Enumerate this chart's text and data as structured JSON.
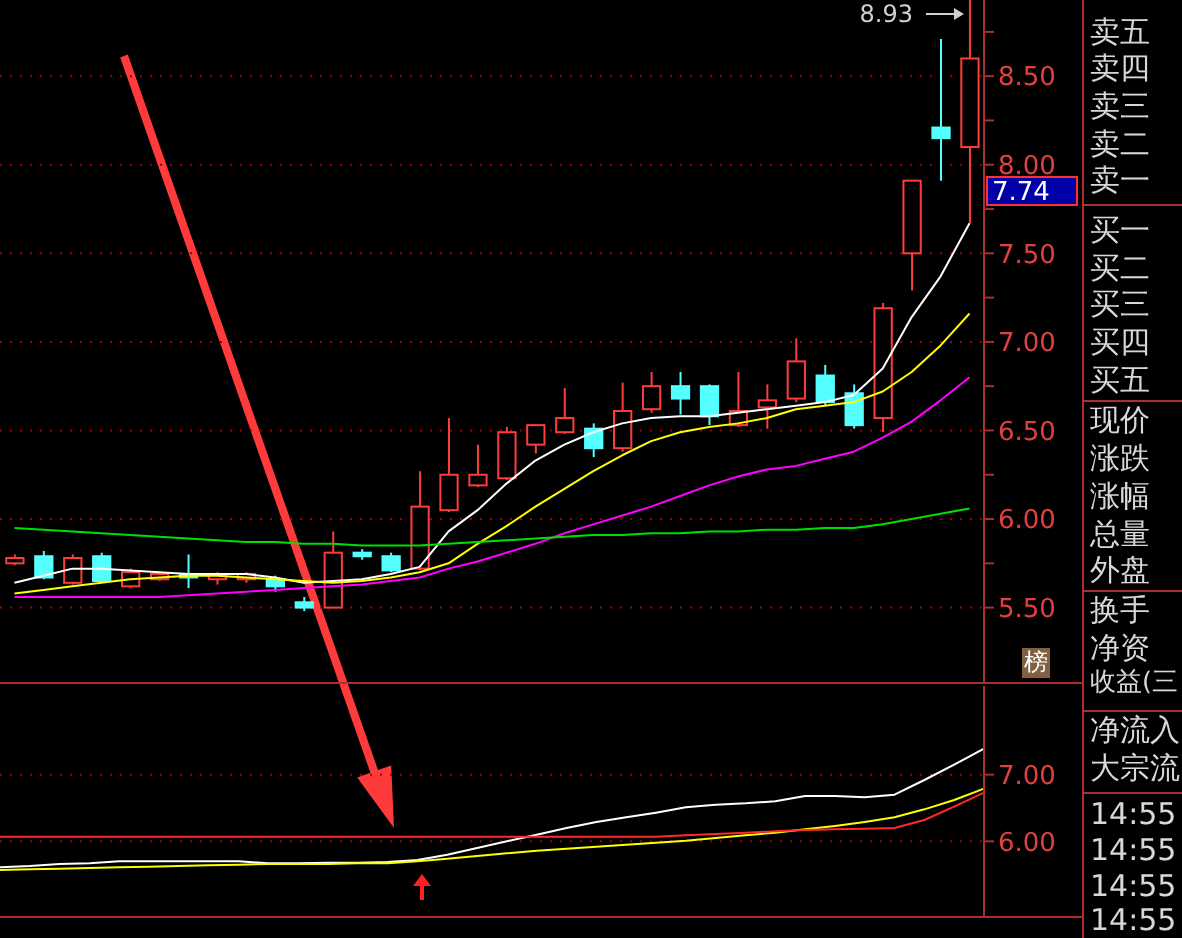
{
  "chart_data": [
    {
      "type": "candlestick",
      "categories": [
        null,
        null,
        null,
        null,
        null,
        null,
        null,
        null,
        null,
        null,
        null,
        null,
        null,
        null,
        null,
        null,
        null,
        null,
        null,
        null,
        null,
        null,
        null,
        null,
        null,
        null,
        null,
        null,
        null,
        null,
        null,
        null,
        null,
        null
      ],
      "ohlc": [
        [
          5.75,
          5.8,
          5.74,
          5.78
        ],
        [
          5.79,
          5.82,
          5.66,
          5.67
        ],
        [
          5.64,
          5.8,
          5.63,
          5.78
        ],
        [
          5.79,
          5.81,
          5.64,
          5.65
        ],
        [
          5.62,
          5.72,
          5.61,
          5.7
        ],
        [
          5.66,
          5.7,
          5.65,
          5.69
        ],
        [
          5.69,
          5.8,
          5.61,
          5.67
        ],
        [
          5.66,
          5.7,
          5.63,
          5.69
        ],
        [
          5.66,
          5.7,
          5.64,
          5.69
        ],
        [
          5.66,
          5.68,
          5.59,
          5.62
        ],
        [
          5.53,
          5.56,
          5.48,
          5.5
        ],
        [
          5.5,
          5.93,
          5.5,
          5.81
        ],
        [
          5.81,
          5.83,
          5.77,
          5.79
        ],
        [
          5.79,
          5.81,
          5.7,
          5.71
        ],
        [
          5.72,
          6.27,
          5.71,
          6.07
        ],
        [
          6.05,
          6.57,
          6.04,
          6.25
        ],
        [
          6.19,
          6.42,
          6.18,
          6.25
        ],
        [
          6.23,
          6.52,
          6.22,
          6.49
        ],
        [
          6.42,
          6.53,
          6.37,
          6.53
        ],
        [
          6.49,
          6.74,
          6.48,
          6.57
        ],
        [
          6.51,
          6.54,
          6.35,
          6.4
        ],
        [
          6.4,
          6.77,
          6.38,
          6.61
        ],
        [
          6.62,
          6.83,
          6.6,
          6.75
        ],
        [
          6.75,
          6.83,
          6.59,
          6.68
        ],
        [
          6.75,
          6.76,
          6.53,
          6.58
        ],
        [
          6.53,
          6.83,
          6.52,
          6.61
        ],
        [
          6.63,
          6.76,
          6.51,
          6.67
        ],
        [
          6.68,
          7.02,
          6.66,
          6.89
        ],
        [
          6.81,
          6.87,
          6.64,
          6.66
        ],
        [
          6.71,
          6.76,
          6.51,
          6.53
        ],
        [
          6.57,
          7.22,
          6.49,
          7.19
        ],
        [
          7.5,
          7.91,
          7.29,
          7.91
        ],
        [
          8.21,
          8.71,
          7.91,
          8.15
        ],
        [
          8.1,
          8.93,
          7.67,
          8.6
        ]
      ],
      "colors": [
        "#ff3c3c",
        "#54ffff",
        "#ff3c3c",
        "#54ffff",
        "#ff3c3c",
        "#ff3c3c",
        "#54ffff",
        "#ff3c3c",
        "#ff3c3c",
        "#54ffff",
        "#54ffff",
        "#ff3c3c",
        "#54ffff",
        "#54ffff",
        "#ff3c3c",
        "#ff3c3c",
        "#ff3c3c",
        "#ff3c3c",
        "#ff3c3c",
        "#ff3c3c",
        "#54ffff",
        "#ff3c3c",
        "#ff3c3c",
        "#54ffff",
        "#54ffff",
        "#ff3c3c",
        "#ff3c3c",
        "#ff3c3c",
        "#54ffff",
        "#54ffff",
        "#ff3c3c",
        "#ff3c3c",
        "#54ffff",
        "#ff3c3c"
      ],
      "series": [
        {
          "type": "line",
          "color": "#ffffff",
          "values": [
            5.64,
            5.68,
            5.72,
            5.72,
            5.71,
            5.7,
            5.69,
            5.69,
            5.69,
            5.67,
            5.64,
            5.65,
            5.66,
            5.69,
            5.73,
            5.93,
            6.05,
            6.2,
            6.33,
            6.42,
            6.49,
            6.54,
            6.57,
            6.58,
            6.58,
            6.6,
            6.62,
            6.64,
            6.66,
            6.7,
            6.85,
            7.14,
            7.37,
            7.67
          ]
        },
        {
          "type": "line",
          "color": "#ffff00",
          "values": [
            5.58,
            5.6,
            5.62,
            5.64,
            5.66,
            5.67,
            5.68,
            5.68,
            5.67,
            5.66,
            5.65,
            5.64,
            5.65,
            5.67,
            5.7,
            5.75,
            5.86,
            5.96,
            6.07,
            6.17,
            6.27,
            6.36,
            6.44,
            6.49,
            6.52,
            6.54,
            6.57,
            6.62,
            6.64,
            6.66,
            6.72,
            6.83,
            6.98,
            7.16
          ]
        },
        {
          "type": "line",
          "color": "#ff00ff",
          "values": [
            5.56,
            5.56,
            5.56,
            5.56,
            5.56,
            5.56,
            5.57,
            5.58,
            5.59,
            5.6,
            5.61,
            5.62,
            5.63,
            5.65,
            5.67,
            5.72,
            5.76,
            5.81,
            5.86,
            5.92,
            5.97,
            6.02,
            6.07,
            6.13,
            6.19,
            6.24,
            6.28,
            6.3,
            6.34,
            6.38,
            6.46,
            6.55,
            6.67,
            6.8
          ]
        },
        {
          "type": "line",
          "color": "#00e000",
          "values": [
            5.95,
            5.94,
            5.93,
            5.92,
            5.91,
            5.9,
            5.89,
            5.88,
            5.87,
            5.87,
            5.86,
            5.86,
            5.85,
            5.85,
            5.85,
            5.86,
            5.87,
            5.88,
            5.89,
            5.9,
            5.91,
            5.91,
            5.92,
            5.92,
            5.93,
            5.93,
            5.94,
            5.94,
            5.95,
            5.95,
            5.97,
            6.0,
            6.03,
            6.06
          ]
        }
      ],
      "ylim": [
        5.08,
        8.93
      ],
      "yticks": [
        {
          "value": 5.5,
          "label": "5.50"
        },
        {
          "value": 5.75,
          "label": null
        },
        {
          "value": 6,
          "label": "6.00"
        },
        {
          "value": 6.25,
          "label": null
        },
        {
          "value": 6.5,
          "label": "6.50"
        },
        {
          "value": 6.75,
          "label": null
        },
        {
          "value": 7,
          "label": "7.00"
        },
        {
          "value": 7.25,
          "label": null
        },
        {
          "value": 7.5,
          "label": "7.50"
        },
        {
          "value": 7.75,
          "label": null
        },
        {
          "value": 8,
          "label": "8.00"
        },
        {
          "value": 8.25,
          "label": null
        },
        {
          "value": 8.5,
          "label": "8.50"
        },
        {
          "value": 8.75,
          "label": null
        }
      ],
      "grid": "y",
      "tick_labels": "y",
      "marker": "none",
      "annotations": [
        "8.93",
        "7.74",
        "榜"
      ]
    },
    {
      "type": "line",
      "categories": [
        null,
        null,
        null,
        null,
        null,
        null,
        null,
        null,
        null,
        null,
        null,
        null,
        null,
        null,
        null,
        null,
        null,
        null,
        null,
        null,
        null,
        null,
        null,
        null,
        null,
        null,
        null,
        null,
        null,
        null,
        null,
        null,
        null,
        null
      ],
      "series": [
        {
          "color": "#ffffff",
          "values": [
            5.61,
            5.63,
            5.66,
            5.67,
            5.7,
            5.7,
            5.7,
            5.7,
            5.7,
            5.67,
            5.67,
            5.68,
            5.68,
            5.69,
            5.72,
            5.8,
            5.9,
            6.0,
            6.1,
            6.2,
            6.29,
            6.36,
            6.43,
            6.51,
            6.55,
            6.57,
            6.6,
            6.68,
            6.68,
            6.66,
            6.7,
            6.92,
            7.15,
            7.39
          ]
        },
        {
          "color": "#ffff00",
          "values": [
            5.57,
            5.58,
            5.59,
            5.6,
            5.61,
            5.62,
            5.63,
            5.64,
            5.65,
            5.66,
            5.66,
            5.66,
            5.67,
            5.67,
            5.7,
            5.74,
            5.78,
            5.82,
            5.86,
            5.89,
            5.92,
            5.95,
            5.98,
            6.01,
            6.05,
            6.09,
            6.13,
            6.18,
            6.23,
            6.29,
            6.36,
            6.48,
            6.62,
            6.79
          ]
        },
        {
          "color": "#ff2a2a",
          "values": [
            6.07,
            6.07,
            6.07,
            6.07,
            6.07,
            6.07,
            6.07,
            6.07,
            6.07,
            6.07,
            6.07,
            6.07,
            6.07,
            6.07,
            6.07,
            6.07,
            6.07,
            6.07,
            6.07,
            6.07,
            6.07,
            6.07,
            6.07,
            6.09,
            6.11,
            6.13,
            6.15,
            6.17,
            6.18,
            6.19,
            6.2,
            6.32,
            6.52,
            6.73
          ]
        }
      ],
      "ylim": [
        4.88,
        8.33
      ],
      "yticks": [
        {
          "value": 6,
          "label": "6.00"
        },
        {
          "value": 7,
          "label": "7.00"
        }
      ],
      "grid": "y",
      "tick_labels": "y",
      "marker": "none"
    },
    {
      "type": "other",
      "annotations": [
        "卖五",
        "卖四",
        "卖三",
        "卖二",
        "卖一",
        "买一",
        "买二",
        "买三",
        "买四",
        "买五",
        "现价",
        "涨跌",
        "涨幅",
        "总量",
        "外盘",
        "换手",
        "净资",
        "收益(三",
        "净流入",
        "大宗流",
        "14:55",
        "14:55",
        "14:55",
        "14:55"
      ]
    }
  ]
}
